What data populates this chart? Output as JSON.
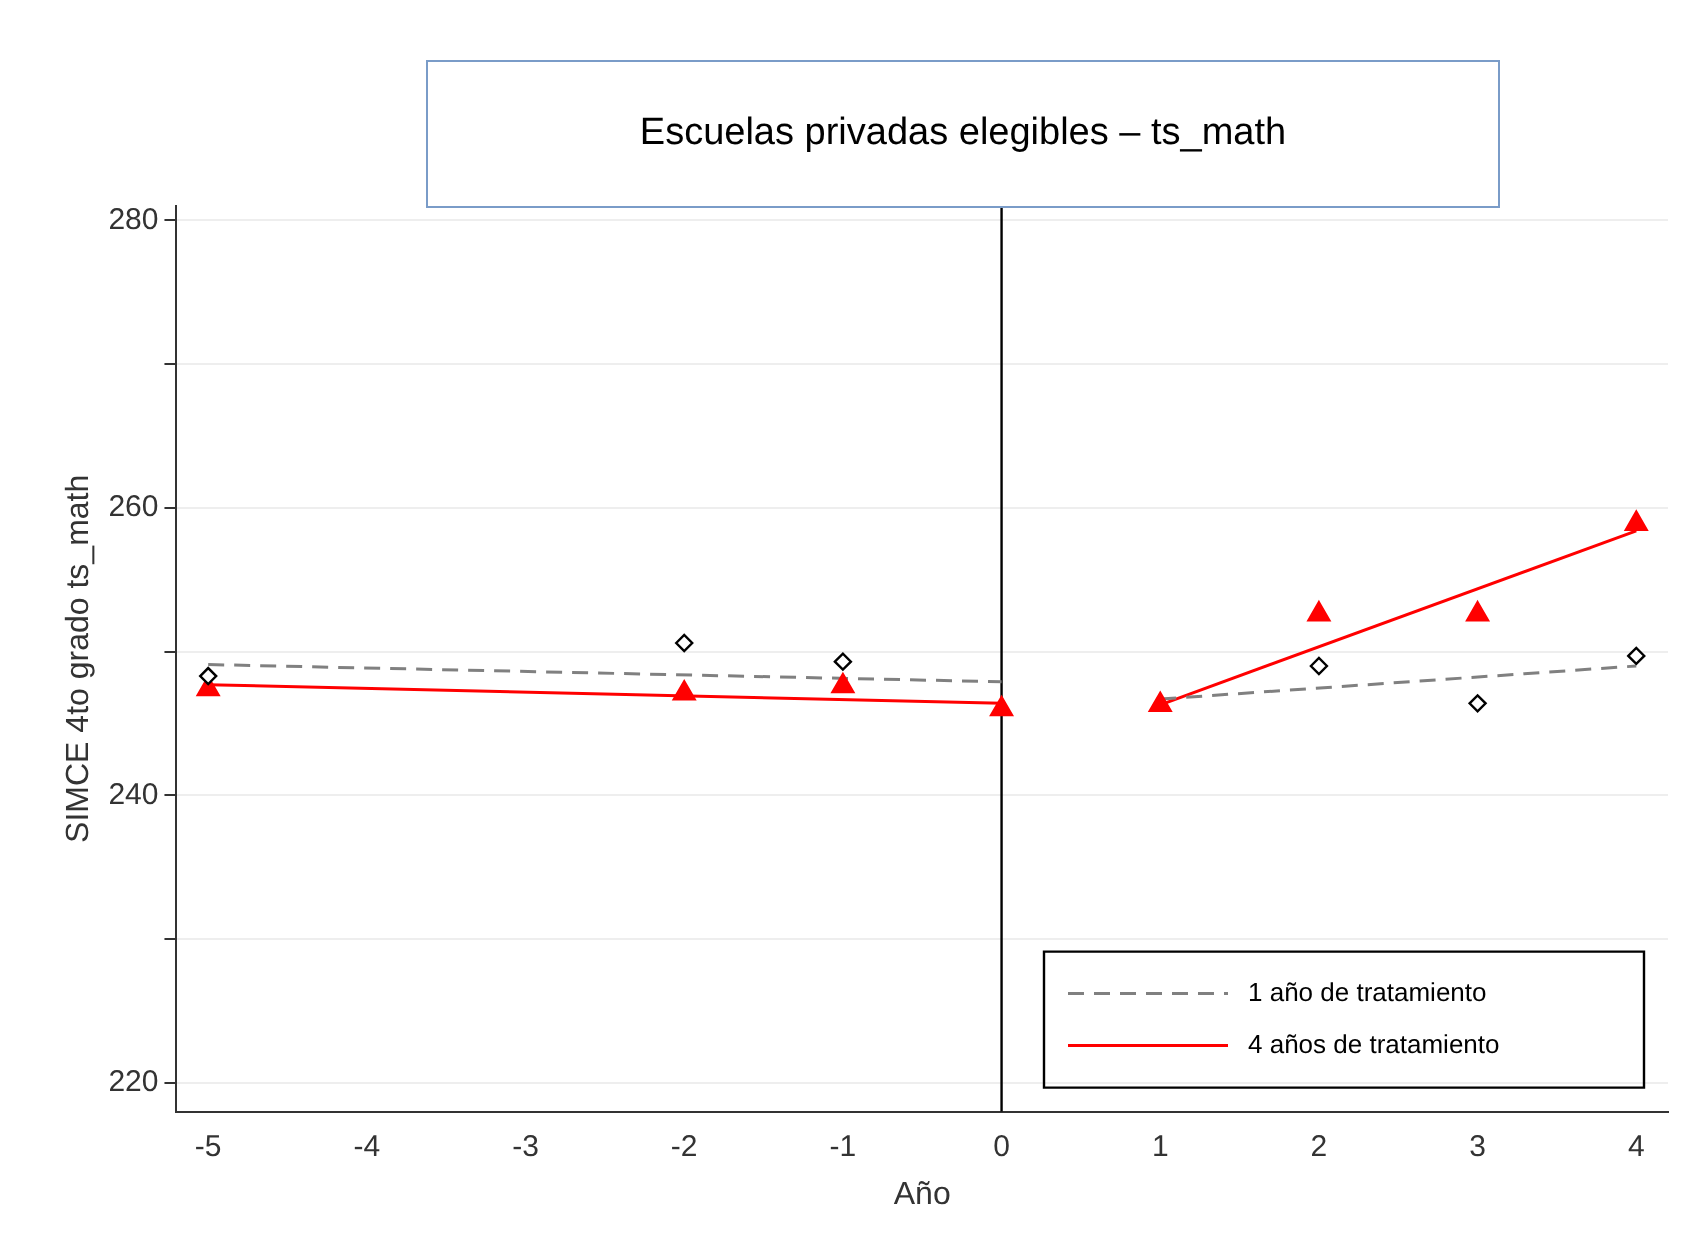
{
  "chart_data": {
    "type": "scatter",
    "title": "Escuelas privadas elegibles – ts_math",
    "xlabel": "Año",
    "ylabel": "SIMCE 4to grado ts_math",
    "x": [
      -5,
      -2,
      -1,
      0,
      1,
      2,
      3,
      4
    ],
    "xlim": [
      -5.2,
      4.2
    ],
    "xticks": [
      -5,
      -4,
      -3,
      -2,
      -1,
      0,
      1,
      2,
      3,
      4
    ],
    "ylim": [
      218,
      281
    ],
    "yticks": [
      220,
      {
        "value": 230,
        "label": null
      },
      240,
      {
        "value": 250,
        "label": null
      },
      260,
      {
        "value": 270,
        "label": null
      },
      280
    ],
    "grid": "y",
    "legend": "bottom right",
    "ref_lines": [
      {
        "axis": "x",
        "value": 0,
        "color": "#000000"
      }
    ],
    "series": [
      {
        "type": "scatter",
        "marker": "diamond",
        "color": "#000000",
        "values": [
          248.3,
          250.6,
          249.3,
          null,
          null,
          249.0,
          246.4,
          249.7
        ]
      },
      {
        "type": "scatter",
        "marker": "triangle",
        "color": "#ff0000",
        "values": [
          247.4,
          247.1,
          247.6,
          246.0,
          246.3,
          252.6,
          252.6,
          258.9
        ]
      },
      {
        "type": "line",
        "name": "1 año de tratamiento",
        "color": "#808080",
        "line_style": "dashed",
        "marker": "none",
        "x": [
          -5,
          0
        ],
        "values": [
          249.1,
          247.9
        ]
      },
      {
        "type": "line",
        "color": "#808080",
        "line_style": "dashed",
        "marker": "none",
        "x": [
          1,
          4
        ],
        "values": [
          246.7,
          249.0
        ]
      },
      {
        "type": "line",
        "name": "4 años de tratamiento",
        "color": "#ff0000",
        "line_style": "solid",
        "marker": "none",
        "x": [
          -5,
          0
        ],
        "values": [
          247.7,
          246.4
        ]
      },
      {
        "type": "line",
        "color": "#ff0000",
        "line_style": "solid",
        "marker": "none",
        "x": [
          1,
          4
        ],
        "values": [
          246.3,
          258.4
        ]
      }
    ]
  }
}
